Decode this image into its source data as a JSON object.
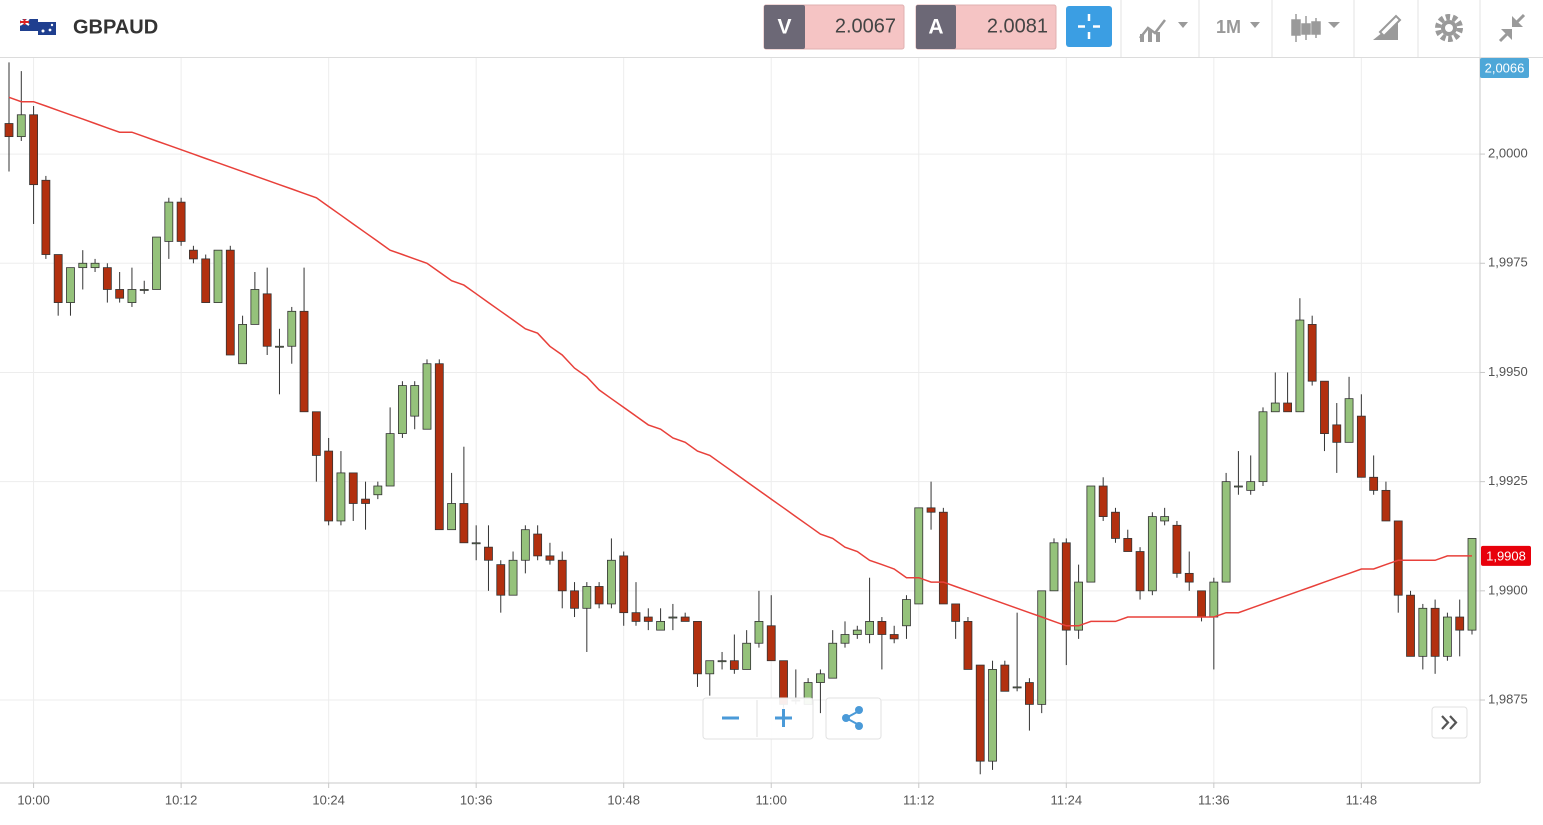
{
  "header": {
    "symbol": "GBPAUD",
    "sell_label": "V",
    "sell_price": "2.0067",
    "buy_label": "A",
    "buy_price": "2.0081",
    "timeframe": "1M"
  },
  "chart_data": {
    "type": "candlestick",
    "x": [
      "09:58",
      "09:59",
      "10:00",
      "10:01",
      "10:02",
      "10:03",
      "10:04",
      "10:05",
      "10:06",
      "10:07",
      "10:08",
      "10:09",
      "10:10",
      "10:11",
      "10:12",
      "10:13",
      "10:14",
      "10:15",
      "10:16",
      "10:17",
      "10:18",
      "10:19",
      "10:20",
      "10:21",
      "10:22",
      "10:23",
      "10:24",
      "10:25",
      "10:26",
      "10:27",
      "10:28",
      "10:29",
      "10:30",
      "10:31",
      "10:32",
      "10:33",
      "10:34",
      "10:35",
      "10:36",
      "10:37",
      "10:38",
      "10:39",
      "10:40",
      "10:41",
      "10:42",
      "10:43",
      "10:44",
      "10:45",
      "10:46",
      "10:47",
      "10:48",
      "10:49",
      "10:50",
      "10:51",
      "10:52",
      "10:53",
      "10:54",
      "10:55",
      "10:56",
      "10:57",
      "10:58",
      "10:59",
      "11:00",
      "11:01",
      "11:02",
      "11:03",
      "11:04",
      "11:05",
      "11:06",
      "11:07",
      "11:08",
      "11:09",
      "11:10",
      "11:11",
      "11:12",
      "11:13",
      "11:14",
      "11:15",
      "11:16",
      "11:17",
      "11:18",
      "11:19",
      "11:20",
      "11:21",
      "11:22",
      "11:23",
      "11:24",
      "11:25",
      "11:26",
      "11:27",
      "11:28",
      "11:29",
      "11:30",
      "11:31",
      "11:32",
      "11:33",
      "11:34",
      "11:35",
      "11:36",
      "11:37",
      "11:38",
      "11:39",
      "11:40",
      "11:41",
      "11:42",
      "11:43",
      "11:44",
      "11:45",
      "11:46",
      "11:47",
      "11:48",
      "11:49",
      "11:50",
      "11:51",
      "11:52",
      "11:53",
      "11:54",
      "11:55",
      "11:56",
      "11:57"
    ],
    "open": [
      2.0007,
      2.0004,
      2.0009,
      1.9994,
      1.9977,
      1.9966,
      1.9974,
      1.9974,
      1.9974,
      1.9969,
      1.9966,
      1.9969,
      1.9969,
      1.998,
      1.9989,
      1.9978,
      1.9976,
      1.9966,
      1.9978,
      1.9952,
      1.9961,
      1.9968,
      1.9956,
      1.9956,
      1.9964,
      1.9941,
      1.9932,
      1.9916,
      1.9927,
      1.9921,
      1.9922,
      1.9924,
      1.9936,
      1.994,
      1.9937,
      1.9952,
      1.9914,
      1.992,
      1.9911,
      1.991,
      1.9906,
      1.9899,
      1.9907,
      1.9913,
      1.9908,
      1.9907,
      1.99,
      1.9896,
      1.9901,
      1.9897,
      1.9908,
      1.9895,
      1.9894,
      1.9891,
      1.9894,
      1.9894,
      1.9893,
      1.9881,
      1.9884,
      1.9884,
      1.9882,
      1.9888,
      1.9892,
      1.9884,
      1.9875,
      1.9874,
      1.9879,
      1.988,
      1.9888,
      1.989,
      1.989,
      1.9893,
      1.989,
      1.9892,
      1.9897,
      1.9919,
      1.9918,
      1.9897,
      1.9893,
      1.9883,
      1.9861,
      1.9883,
      1.9878,
      1.9879,
      1.9874,
      1.99,
      1.9911,
      1.9891,
      1.9902,
      1.9924,
      1.9918,
      1.9912,
      1.9909,
      1.99,
      1.9916,
      1.9915,
      1.9904,
      1.99,
      1.9894,
      1.9902,
      1.9924,
      1.9923,
      1.9925,
      1.9941,
      1.9943,
      1.9941,
      1.9961,
      1.9948,
      1.9938,
      1.9934,
      1.994,
      1.9926,
      1.9923,
      1.9916,
      1.9899,
      1.9885,
      1.9896,
      1.9885,
      1.9894,
      1.9891
    ],
    "high": [
      2.0021,
      2.0019,
      2.0011,
      1.9995,
      1.9977,
      1.9974,
      1.9978,
      1.9976,
      1.9975,
      1.9973,
      1.9974,
      1.9971,
      1.9981,
      1.999,
      1.999,
      1.9979,
      1.9977,
      1.9978,
      1.9979,
      1.9963,
      1.9973,
      1.9974,
      1.996,
      1.9965,
      1.9974,
      1.9941,
      1.9935,
      1.9932,
      1.9927,
      1.9925,
      1.9925,
      1.9942,
      1.9948,
      1.9948,
      1.9953,
      1.9953,
      1.9927,
      1.9933,
      1.9915,
      1.9915,
      1.9907,
      1.9909,
      1.9915,
      1.9915,
      1.9911,
      1.9909,
      1.9902,
      1.9902,
      1.9902,
      1.9912,
      1.9909,
      1.9902,
      1.9896,
      1.9896,
      1.9897,
      1.9895,
      1.9893,
      1.9884,
      1.9886,
      1.989,
      1.9891,
      1.99,
      1.9899,
      1.9884,
      1.9882,
      1.988,
      1.9882,
      1.9891,
      1.9893,
      1.9892,
      1.9903,
      1.9894,
      1.9892,
      1.9899,
      1.9919,
      1.9925,
      1.9919,
      1.9897,
      1.9894,
      1.9883,
      1.9884,
      1.9884,
      1.9895,
      1.988,
      1.99,
      1.9912,
      1.9912,
      1.9906,
      1.9924,
      1.9926,
      1.9919,
      1.9914,
      1.991,
      1.9918,
      1.9919,
      1.9916,
      1.9909,
      1.99,
      1.9903,
      1.9927,
      1.9932,
      1.9931,
      1.9942,
      1.995,
      1.995,
      1.9967,
      1.9963,
      1.9948,
      1.9943,
      1.9949,
      1.9945,
      1.9931,
      1.9925,
      1.9916,
      1.99,
      1.9897,
      1.9898,
      1.9895,
      1.9898,
      1.9912
    ],
    "low": [
      1.9996,
      2.0003,
      1.9984,
      1.9976,
      1.9963,
      1.9963,
      1.9969,
      1.9973,
      1.9966,
      1.9966,
      1.9965,
      1.9968,
      1.9969,
      1.9976,
      1.9979,
      1.9975,
      1.9966,
      1.9966,
      1.9954,
      1.9952,
      1.9961,
      1.9954,
      1.9945,
      1.9952,
      1.9941,
      1.9925,
      1.9915,
      1.9915,
      1.9916,
      1.9914,
      1.9921,
      1.9924,
      1.9935,
      1.9937,
      1.9937,
      1.9914,
      1.9914,
      1.9911,
      1.9907,
      1.99,
      1.9895,
      1.9899,
      1.9904,
      1.9907,
      1.9906,
      1.9896,
      1.9894,
      1.9886,
      1.9896,
      1.9896,
      1.9892,
      1.9892,
      1.9891,
      1.9891,
      1.9891,
      1.9893,
      1.9878,
      1.9876,
      1.9882,
      1.9881,
      1.9882,
      1.9887,
      1.9884,
      1.9873,
      1.9874,
      1.9874,
      1.9872,
      1.988,
      1.9887,
      1.9889,
      1.9888,
      1.9882,
      1.9888,
      1.9889,
      1.9897,
      1.9914,
      1.9897,
      1.9889,
      1.9882,
      1.9858,
      1.9859,
      1.9877,
      1.9877,
      1.9868,
      1.9872,
      1.99,
      1.9883,
      1.9889,
      1.9902,
      1.9916,
      1.9911,
      1.9909,
      1.9898,
      1.9899,
      1.9915,
      1.9903,
      1.99,
      1.9893,
      1.9882,
      1.9902,
      1.9922,
      1.9922,
      1.9924,
      1.9941,
      1.9941,
      1.9941,
      1.9947,
      1.9932,
      1.9927,
      1.9934,
      1.9926,
      1.9922,
      1.9916,
      1.9895,
      1.9885,
      1.9882,
      1.9881,
      1.9884,
      1.9885,
      1.989
    ],
    "close": [
      2.0004,
      2.0009,
      1.9993,
      1.9977,
      1.9966,
      1.9974,
      1.9975,
      1.9975,
      1.9969,
      1.9967,
      1.9969,
      1.9969,
      1.9981,
      1.9989,
      1.998,
      1.9976,
      1.9966,
      1.9978,
      1.9954,
      1.9961,
      1.9969,
      1.9956,
      1.9956,
      1.9964,
      1.9941,
      1.9931,
      1.9916,
      1.9927,
      1.992,
      1.992,
      1.9924,
      1.9936,
      1.9947,
      1.9947,
      1.9952,
      1.9914,
      1.992,
      1.9911,
      1.9911,
      1.9907,
      1.9899,
      1.9907,
      1.9914,
      1.9908,
      1.9907,
      1.99,
      1.9896,
      1.9901,
      1.9897,
      1.9907,
      1.9895,
      1.9893,
      1.9893,
      1.9893,
      1.9894,
      1.9893,
      1.9881,
      1.9884,
      1.9884,
      1.9882,
      1.9888,
      1.9893,
      1.9884,
      1.9874,
      1.9875,
      1.9879,
      1.9881,
      1.9888,
      1.989,
      1.9891,
      1.9893,
      1.989,
      1.9889,
      1.9898,
      1.9919,
      1.9918,
      1.9897,
      1.9893,
      1.9882,
      1.9861,
      1.9882,
      1.9877,
      1.9878,
      1.9874,
      1.99,
      1.9911,
      1.9891,
      1.9902,
      1.9924,
      1.9917,
      1.9912,
      1.9909,
      1.99,
      1.9917,
      1.9917,
      1.9904,
      1.9902,
      1.9894,
      1.9902,
      1.9925,
      1.9924,
      1.9925,
      1.9941,
      1.9943,
      1.9941,
      1.9962,
      1.9948,
      1.9936,
      1.9934,
      1.9944,
      1.9926,
      1.9923,
      1.9916,
      1.9899,
      1.9885,
      1.9896,
      1.9885,
      1.9894,
      1.9891,
      1.9912
    ],
    "up_color": "#95c27b",
    "down_color": "#b2300f",
    "ma": {
      "color": "#e8403a",
      "values": [
        2.0013,
        2.0012,
        2.0012,
        2.0011,
        2.001,
        2.0009,
        2.0008,
        2.0007,
        2.0006,
        2.0005,
        2.0005,
        2.0004,
        2.0003,
        2.0002,
        2.0001,
        2.0,
        1.9999,
        1.9998,
        1.9997,
        1.9996,
        1.9995,
        1.9994,
        1.9993,
        1.9992,
        1.9991,
        1.999,
        1.9988,
        1.9986,
        1.9984,
        1.9982,
        1.998,
        1.9978,
        1.9977,
        1.9976,
        1.9975,
        1.9973,
        1.9971,
        1.997,
        1.9968,
        1.9966,
        1.9964,
        1.9962,
        1.996,
        1.9959,
        1.9956,
        1.9954,
        1.9951,
        1.9949,
        1.9946,
        1.9944,
        1.9942,
        1.994,
        1.9938,
        1.9937,
        1.9935,
        1.9934,
        1.9932,
        1.9931,
        1.9929,
        1.9927,
        1.9925,
        1.9923,
        1.9921,
        1.9919,
        1.9917,
        1.9915,
        1.9913,
        1.9912,
        1.991,
        1.9909,
        1.9907,
        1.9906,
        1.9905,
        1.9903,
        1.9903,
        1.9902,
        1.9902,
        1.9901,
        1.99,
        1.9899,
        1.9898,
        1.9897,
        1.9896,
        1.9895,
        1.9894,
        1.9893,
        1.9892,
        1.9892,
        1.9893,
        1.9893,
        1.9893,
        1.9894,
        1.9894,
        1.9894,
        1.9894,
        1.9894,
        1.9894,
        1.9894,
        1.9894,
        1.9895,
        1.9895,
        1.9896,
        1.9897,
        1.9898,
        1.9899,
        1.99,
        1.9901,
        1.9902,
        1.9903,
        1.9904,
        1.9905,
        1.9905,
        1.9906,
        1.9907,
        1.9907,
        1.9907,
        1.9907,
        1.9908,
        1.9908,
        1.9908
      ]
    },
    "ma_label": {
      "value": 1.9908,
      "label": "1,9908"
    },
    "price_label": {
      "value": 2.0066,
      "label": "2,0066"
    },
    "xlim": [
      "09:58",
      "11:57"
    ],
    "xticks": [
      "10:00",
      "10:12",
      "10:24",
      "10:36",
      "10:48",
      "11:00",
      "11:12",
      "11:24",
      "11:36",
      "11:48"
    ],
    "ylim": [
      1.9856,
      2.0022
    ],
    "yticks": [
      {
        "value": 1.9875,
        "label": "1,9875"
      },
      {
        "value": 1.99,
        "label": "1,9900"
      },
      {
        "value": 1.9925,
        "label": "1,9925"
      },
      {
        "value": 1.995,
        "label": "1,9950"
      },
      {
        "value": 1.9975,
        "label": "1,9975"
      },
      {
        "value": 2.0,
        "label": "2,0000"
      }
    ],
    "grid": true
  }
}
